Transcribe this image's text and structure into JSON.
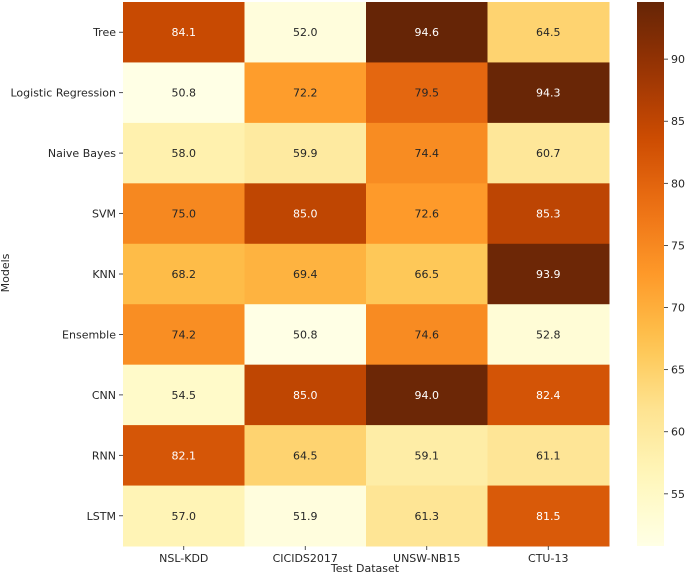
{
  "chart_data": {
    "type": "heatmap",
    "title": "",
    "xlabel": "Test Dataset",
    "ylabel": "Models",
    "x_categories": [
      "NSL-KDD",
      "CICIDS2017",
      "UNSW-NB15",
      "CTU-13"
    ],
    "y_categories": [
      "Tree",
      "Logistic Regression",
      "Naive Bayes",
      "SVM",
      "KNN",
      "Ensemble",
      "CNN",
      "RNN",
      "LSTM"
    ],
    "values": [
      [
        84.1,
        52.0,
        94.6,
        64.5
      ],
      [
        50.8,
        72.2,
        79.5,
        94.3
      ],
      [
        58.0,
        59.9,
        74.4,
        60.7
      ],
      [
        75.0,
        85.0,
        72.6,
        85.3
      ],
      [
        68.2,
        69.4,
        66.5,
        93.9
      ],
      [
        74.2,
        50.8,
        74.6,
        52.8
      ],
      [
        54.5,
        85.0,
        94.0,
        82.4
      ],
      [
        82.1,
        64.5,
        59.1,
        61.1
      ],
      [
        57.0,
        51.9,
        61.3,
        81.5
      ]
    ],
    "colorbar": {
      "colormap": "YlOrBr",
      "vmin": 50.8,
      "vmax": 94.6,
      "ticks": [
        55,
        60,
        65,
        70,
        75,
        80,
        85,
        90
      ],
      "tick_labels": [
        "55",
        "60",
        "65",
        "70",
        "75",
        "80",
        "85",
        "90"
      ]
    }
  }
}
